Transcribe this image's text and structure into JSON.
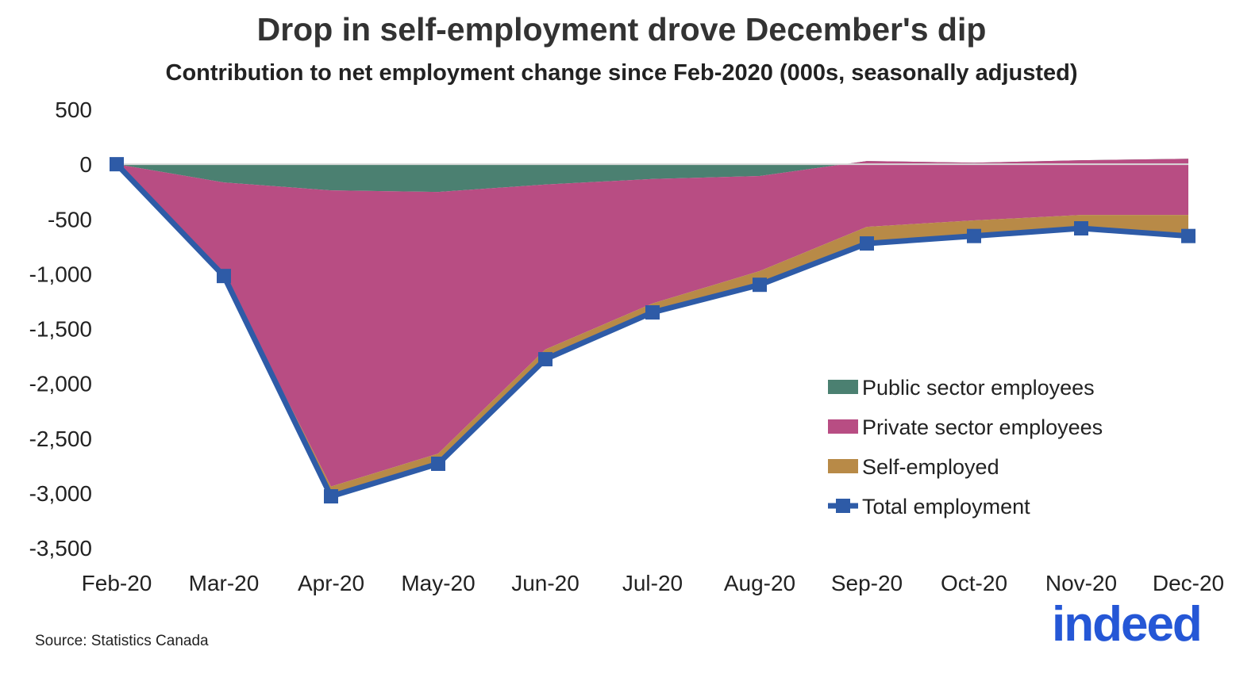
{
  "chart_data": {
    "type": "area",
    "title": "Drop in self-employment drove December's dip",
    "subtitle": "Contribution to net employment change since Feb-2020 (000s, seasonally adjusted)",
    "categories": [
      "Feb-20",
      "Mar-20",
      "Apr-20",
      "May-20",
      "Jun-20",
      "Jul-20",
      "Aug-20",
      "Sep-20",
      "Oct-20",
      "Nov-20",
      "Dec-20"
    ],
    "ylim": [
      -3500,
      500
    ],
    "yticks": [
      500,
      0,
      -500,
      -1000,
      -1500,
      -2000,
      -2500,
      -3000,
      -3500
    ],
    "ytick_labels": [
      "500",
      "0",
      "-500",
      "-1,000",
      "-1,500",
      "-2,000",
      "-2,500",
      "-3,000",
      "-3,500"
    ],
    "grid": false,
    "legend": "right",
    "series": [
      {
        "name": "Public sector employees",
        "kind": "stacked-area",
        "color": "#4b8071",
        "values": [
          0,
          -166,
          -239,
          -253,
          -185,
          -135,
          -108,
          29,
          14,
          36,
          50
        ]
      },
      {
        "name": "Private sector employees",
        "kind": "stacked-area",
        "color": "#b84d83",
        "values": [
          0,
          -844,
          -2701,
          -2387,
          -1505,
          -1135,
          -867,
          -600,
          -527,
          -499,
          -513
        ]
      },
      {
        "name": "Self-employed",
        "kind": "stacked-area",
        "color": "#b88a47",
        "values": [
          0,
          -10,
          -90,
          -93,
          -89,
          -82,
          -125,
          -152,
          -142,
          -122,
          -192
        ]
      },
      {
        "name": "Total employment",
        "kind": "line",
        "color": "#2e5ba7",
        "values": [
          0,
          -1020,
          -3030,
          -2733,
          -1779,
          -1352,
          -1100,
          -723,
          -655,
          -585,
          -655
        ]
      }
    ]
  },
  "source": "Source: Statistics Canada",
  "logo": "indeed"
}
